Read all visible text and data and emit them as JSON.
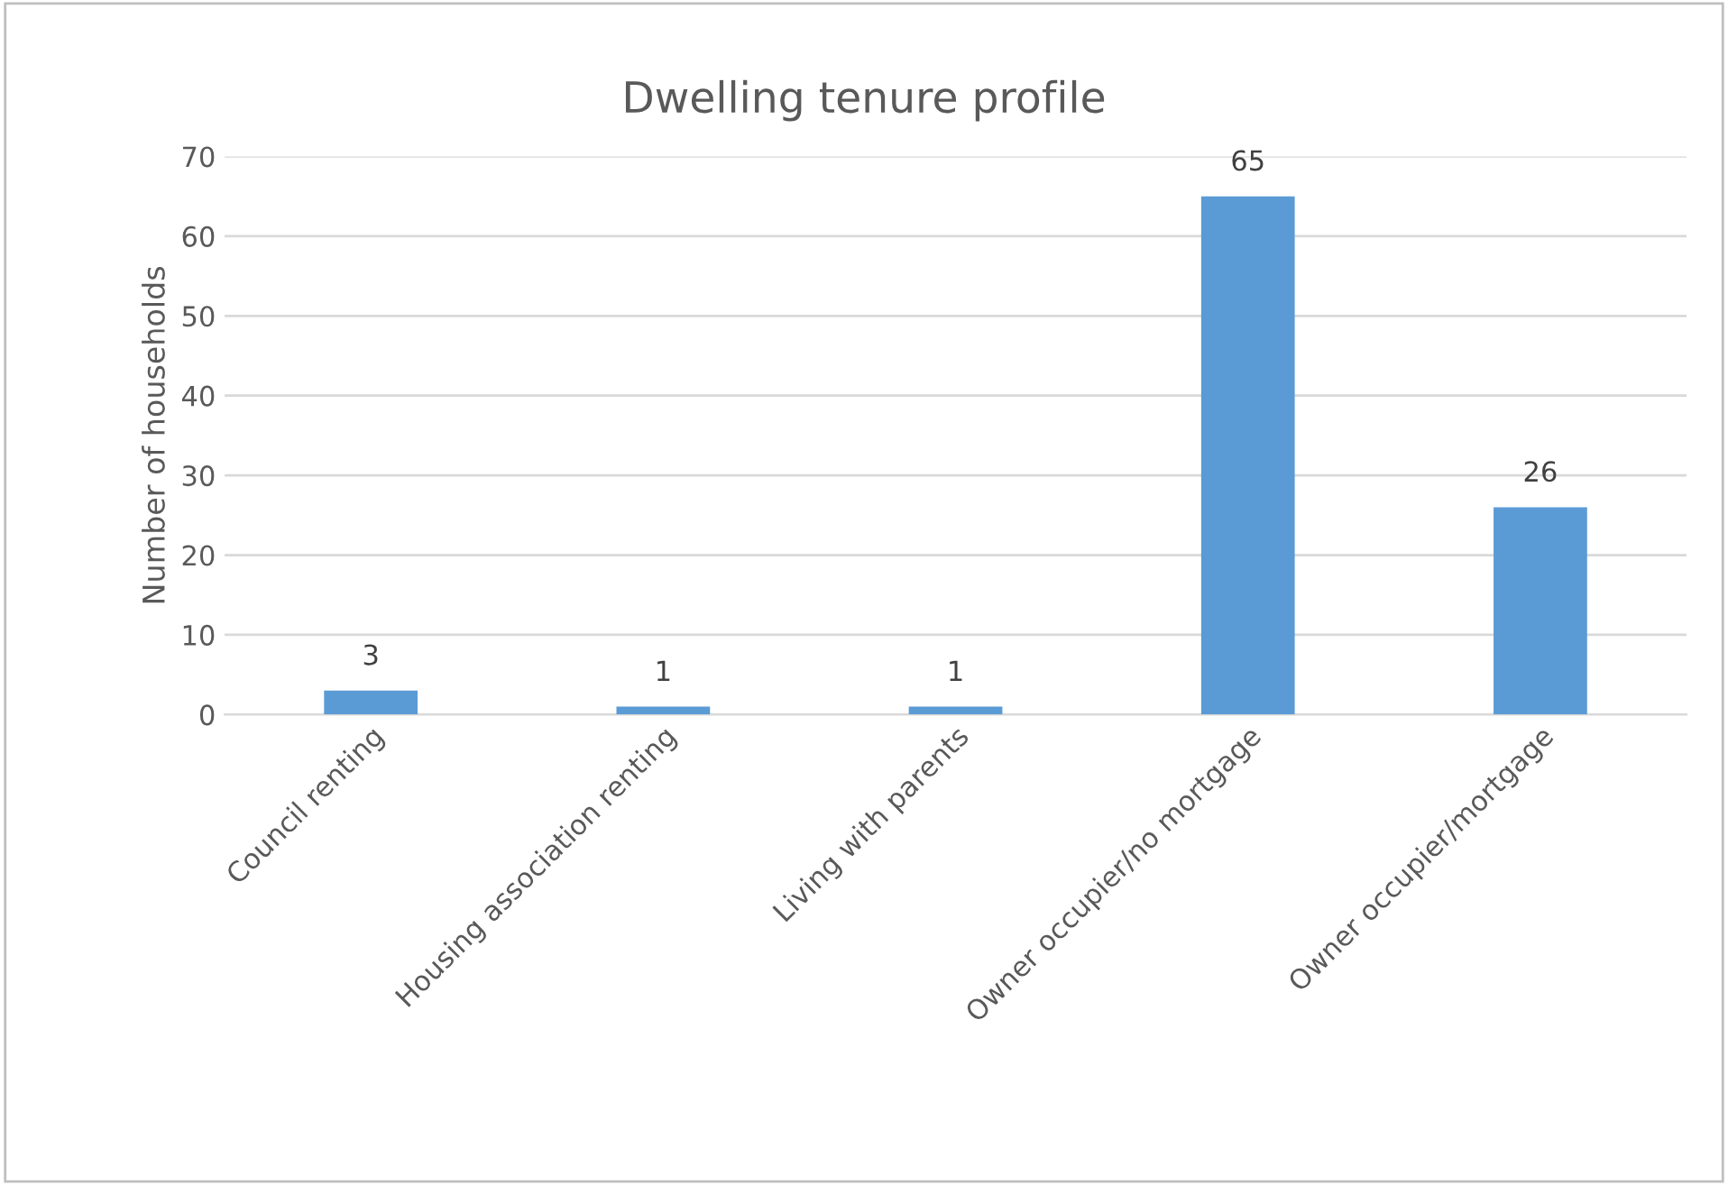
{
  "chart_data": {
    "type": "bar",
    "title": "Dwelling tenure profile",
    "ylabel": "Number of households",
    "categories": [
      "Council renting",
      "Housing association renting",
      "Living with parents",
      "Owner occupier/no mortgage",
      "Owner occupier/mortgage"
    ],
    "values": [
      3,
      1,
      1,
      65,
      26
    ],
    "color": "#5b9bd5",
    "ylim": [
      0,
      70
    ],
    "yticks": [
      0,
      10,
      20,
      30,
      40,
      50,
      60,
      70
    ],
    "grid": "y",
    "data_labels": true
  }
}
